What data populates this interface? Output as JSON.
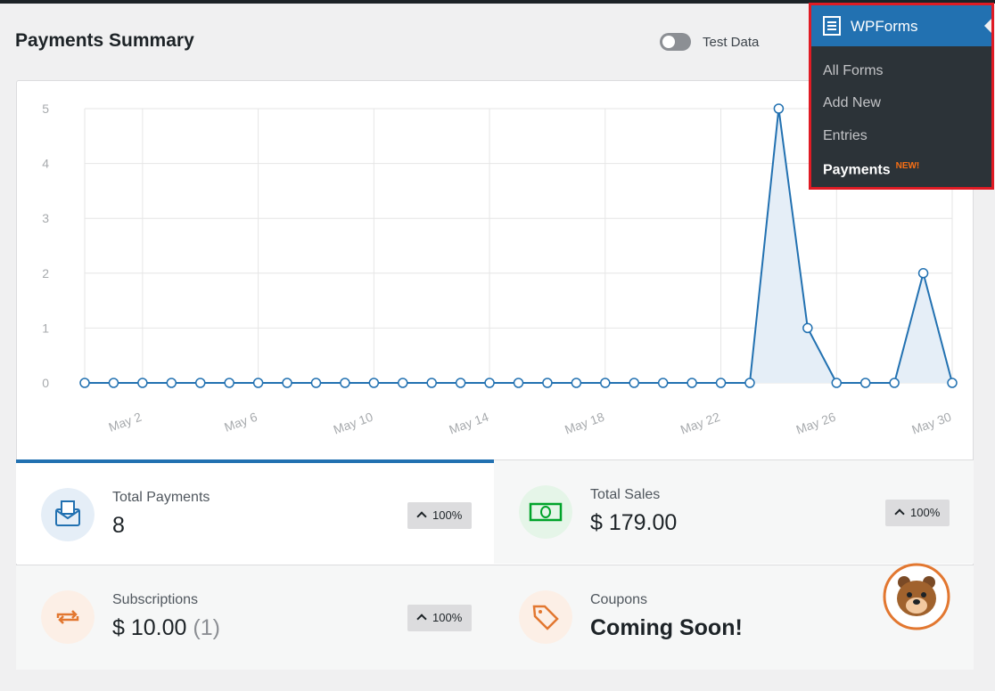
{
  "header": {
    "title": "Payments Summary",
    "toggle_label": "Test Data"
  },
  "chart_data": {
    "type": "area",
    "categories": [
      null,
      null,
      "May 2",
      null,
      null,
      null,
      "May 6",
      null,
      null,
      null,
      "May 10",
      null,
      null,
      null,
      "May 14",
      null,
      null,
      null,
      "May 18",
      null,
      null,
      null,
      "May 22",
      null,
      null,
      null,
      "May 26",
      null,
      null,
      null,
      "May 30"
    ],
    "values": [
      0,
      0,
      0,
      0,
      0,
      0,
      0,
      0,
      0,
      0,
      0,
      0,
      0,
      0,
      0,
      0,
      0,
      0,
      0,
      0,
      0,
      0,
      0,
      0,
      5,
      1,
      0,
      0,
      0,
      2,
      0
    ],
    "color": "#2271b1",
    "fill_color": "#e5eef7",
    "ylim": [
      0,
      5
    ],
    "yticks": [
      0,
      1,
      2,
      3,
      4,
      5
    ],
    "grid": true
  },
  "cards": [
    {
      "label": "Total Payments",
      "value": "8",
      "change": "100%"
    },
    {
      "label": "Total Sales",
      "value": "$ 179.00",
      "change": "100%"
    },
    {
      "label": "Subscriptions",
      "value": "$ 10.00",
      "count": "(1)",
      "change": "100%"
    },
    {
      "label": "Coupons",
      "value": "Coming Soon!"
    }
  ],
  "menu": {
    "title": "WPForms",
    "items": [
      "All Forms",
      "Add New",
      "Entries",
      "Payments"
    ],
    "badge": "NEW!"
  }
}
